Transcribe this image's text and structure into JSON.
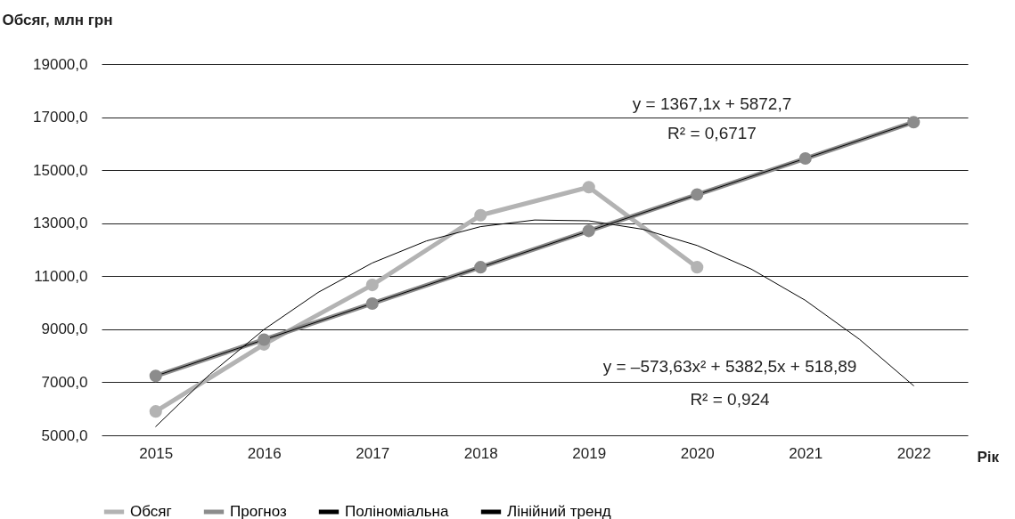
{
  "chart_data": {
    "type": "line",
    "ylabel": "Обсяг, млн грн",
    "xlabel": "Рік",
    "xlim": [
      2014.5,
      2022.5
    ],
    "xticks": [
      2015,
      2016,
      2017,
      2018,
      2019,
      2020,
      2021,
      2022
    ],
    "ylim": [
      5000,
      19000
    ],
    "yticks": [
      {
        "value": 5000,
        "label": "5000,0"
      },
      {
        "value": 7000,
        "label": "7000,0"
      },
      {
        "value": 9000,
        "label": "9000,0"
      },
      {
        "value": 11000,
        "label": "11000,0"
      },
      {
        "value": 13000,
        "label": "13000,0"
      },
      {
        "value": 15000,
        "label": "15000,0"
      },
      {
        "value": 17000,
        "label": "17000,0"
      },
      {
        "value": 19000,
        "label": "19000,0"
      }
    ],
    "grid": "y",
    "legend": "bottom",
    "marker": "circle",
    "series": [
      {
        "name": "Обсяг",
        "color": "#b3b3b3",
        "x": [
          2015,
          2016,
          2017,
          2018,
          2019,
          2020
        ],
        "values": [
          5900,
          8430,
          10670,
          13300,
          14360,
          11340
        ]
      },
      {
        "name": "Прогноз",
        "color": "#8c8c8c",
        "x": [
          2015,
          2016,
          2017,
          2018,
          2019,
          2020,
          2021,
          2022
        ],
        "values": [
          7240,
          8610,
          9970,
          11340,
          12710,
          14080,
          15440,
          16810
        ]
      },
      {
        "name": "Поліноміальна",
        "color": "#000000",
        "marker": "none",
        "x": [
          2015,
          2015.5,
          2016,
          2016.5,
          2017,
          2017.5,
          2018,
          2018.5,
          2019,
          2019.5,
          2020,
          2020.5,
          2021,
          2021.5,
          2022
        ],
        "values": [
          5330,
          7300,
          8990,
          10390,
          11500,
          12330,
          12870,
          13120,
          13090,
          12770,
          12160,
          11270,
          10090,
          8620,
          6870
        ]
      },
      {
        "name": "Лінійний тренд",
        "color": "#000000",
        "marker": "none",
        "x": [
          2015,
          2022
        ],
        "values": [
          7240,
          16810
        ]
      }
    ],
    "annotations": [
      "y = 1367,1x + 5872,7",
      "R² = 0,6717",
      "y = –573,63x² + 5382,5x + 518,89",
      "R² = 0,924"
    ]
  }
}
